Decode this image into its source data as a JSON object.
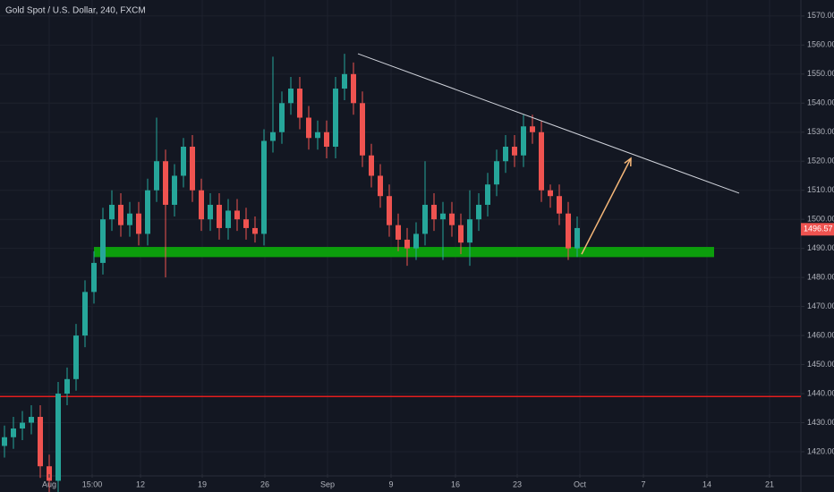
{
  "chart_data": {
    "type": "candlestick",
    "title": "Gold Spot / U.S. Dollar, 240, FXCM",
    "open": [
      1422,
      1425,
      1428,
      1430,
      1432,
      1415,
      1410,
      1440,
      1445,
      1460,
      1475,
      1485,
      1500,
      1505,
      1498,
      1502,
      1495,
      1510,
      1520,
      1505,
      1515,
      1525,
      1510,
      1500,
      1505,
      1497,
      1503,
      1500,
      1497,
      1495,
      1527,
      1530,
      1540,
      1545,
      1535,
      1528,
      1530,
      1525,
      1545,
      1550,
      1540,
      1522,
      1515,
      1508,
      1498,
      1493,
      1490,
      1495,
      1505,
      1500,
      1502,
      1498,
      1492,
      1500,
      1505,
      1512,
      1520,
      1525,
      1522,
      1532,
      1530,
      1510,
      1508,
      1502,
      1490
    ],
    "high": [
      1429,
      1432,
      1434,
      1436,
      1436,
      1419,
      1444,
      1449,
      1464,
      1479,
      1489,
      1504,
      1510,
      1509,
      1506,
      1506,
      1514,
      1535,
      1524,
      1519,
      1528,
      1529,
      1514,
      1509,
      1509,
      1507,
      1507,
      1504,
      1501,
      1531,
      1556,
      1544,
      1549,
      1549,
      1539,
      1534,
      1534,
      1549,
      1557,
      1554,
      1544,
      1526,
      1519,
      1512,
      1502,
      1497,
      1499,
      1520,
      1509,
      1506,
      1506,
      1502,
      1510,
      1509,
      1516,
      1524,
      1529,
      1529,
      1536,
      1536,
      1534,
      1512,
      1512,
      1506,
      1501
    ],
    "low": [
      1418,
      1421,
      1424,
      1426,
      1411,
      1406,
      1406,
      1436,
      1441,
      1456,
      1471,
      1481,
      1496,
      1494,
      1494,
      1491,
      1491,
      1506,
      1480,
      1501,
      1511,
      1506,
      1496,
      1496,
      1493,
      1493,
      1496,
      1493,
      1492,
      1491,
      1523,
      1526,
      1536,
      1531,
      1524,
      1524,
      1521,
      1521,
      1541,
      1536,
      1518,
      1511,
      1504,
      1494,
      1489,
      1484,
      1486,
      1491,
      1496,
      1486,
      1494,
      1488,
      1484,
      1496,
      1501,
      1508,
      1516,
      1518,
      1518,
      1526,
      1506,
      1504,
      1498,
      1486,
      1487
    ],
    "close": [
      1425,
      1428,
      1430,
      1432,
      1415,
      1410,
      1440,
      1445,
      1460,
      1475,
      1485,
      1500,
      1505,
      1498,
      1502,
      1495,
      1510,
      1520,
      1505,
      1515,
      1525,
      1510,
      1500,
      1505,
      1497,
      1503,
      1500,
      1497,
      1495,
      1527,
      1530,
      1540,
      1545,
      1535,
      1528,
      1530,
      1525,
      1545,
      1550,
      1540,
      1522,
      1515,
      1508,
      1498,
      1493,
      1490,
      1495,
      1505,
      1500,
      1502,
      1498,
      1492,
      1500,
      1505,
      1512,
      1520,
      1525,
      1522,
      1532,
      1530,
      1510,
      1508,
      1502,
      1490,
      1497
    ],
    "up_color": "#26a69a",
    "down_color": "#ef5350",
    "xlim": [
      -0.5,
      89
    ],
    "xticks": [
      {
        "value": 5,
        "label": "Aug"
      },
      {
        "value": 9.8,
        "label": "15:00"
      },
      {
        "value": 15.2,
        "label": "12"
      },
      {
        "value": 22.1,
        "label": "19"
      },
      {
        "value": 29.1,
        "label": "26"
      },
      {
        "value": 36.1,
        "label": "Sep"
      },
      {
        "value": 43.2,
        "label": "9"
      },
      {
        "value": 50.4,
        "label": "16"
      },
      {
        "value": 57.3,
        "label": "23"
      },
      {
        "value": 64.3,
        "label": "Oct"
      },
      {
        "value": 71.4,
        "label": "7"
      },
      {
        "value": 78.5,
        "label": "14"
      },
      {
        "value": 85.5,
        "label": "21"
      }
    ],
    "ylim": [
      1412.3,
      1575.5
    ],
    "yticks": [
      {
        "value": 1420,
        "label": "1420.00"
      },
      {
        "value": 1430,
        "label": "1430.00"
      },
      {
        "value": 1440,
        "label": "1440.00"
      },
      {
        "value": 1450,
        "label": "1450.00"
      },
      {
        "value": 1460,
        "label": "1460.00"
      },
      {
        "value": 1470,
        "label": "1470.00"
      },
      {
        "value": 1480,
        "label": "1480.00"
      },
      {
        "value": 1490,
        "label": "1490.00"
      },
      {
        "value": 1500,
        "label": "1500.00"
      },
      {
        "value": 1510,
        "label": "1510.00"
      },
      {
        "value": 1520,
        "label": "1520.00"
      },
      {
        "value": 1530,
        "label": "1530.00"
      },
      {
        "value": 1540,
        "label": "1540.00"
      },
      {
        "value": 1550,
        "label": "1550.00"
      },
      {
        "value": 1560,
        "label": "1560.00"
      },
      {
        "value": 1570,
        "label": "1570.00"
      }
    ],
    "grid": true,
    "last_price": 1496.57,
    "last_price_color": "#ef5350",
    "trendline": {
      "x": [
        39.5,
        82.1
      ],
      "y": [
        1557,
        1509
      ],
      "color": "#d1d4dc"
    },
    "support_zone": {
      "x": [
        10,
        79.3
      ],
      "y": [
        1487,
        1490.5
      ],
      "color": "#0c9d0c"
    },
    "horizontal_line": {
      "y": 1439,
      "color": "#e31e1e"
    },
    "arrow": {
      "x": [
        64.5,
        70
      ],
      "y": [
        1488,
        1521
      ],
      "color": "#f4b678"
    }
  }
}
